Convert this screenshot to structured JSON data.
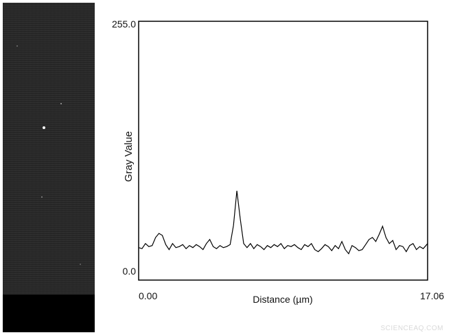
{
  "chart_data": {
    "type": "line",
    "ylabel": "Gray Value",
    "xlabel": "Distance (µm)",
    "x_tick_labels": [
      "0.00",
      "17.06"
    ],
    "y_tick_labels": [
      "0.0",
      "255.0"
    ],
    "xlim": [
      0,
      17.06
    ],
    "ylim": [
      0,
      255
    ],
    "grid": false,
    "series": [
      {
        "x": [
          0,
          0.2,
          0.4,
          0.6,
          0.8,
          1.0,
          1.2,
          1.4,
          1.6,
          1.8,
          2.0,
          2.2,
          2.4,
          2.6,
          2.8,
          3.0,
          3.2,
          3.4,
          3.6,
          3.8,
          4.0,
          4.2,
          4.4,
          4.6,
          4.8,
          5.0,
          5.2,
          5.4,
          5.6,
          5.8,
          6.0,
          6.2,
          6.4,
          6.6,
          6.8,
          7.0,
          7.2,
          7.4,
          7.6,
          7.8,
          8.0,
          8.2,
          8.4,
          8.6,
          8.8,
          9.0,
          9.2,
          9.4,
          9.6,
          9.8,
          10.0,
          10.2,
          10.4,
          10.6,
          10.8,
          11.0,
          11.2,
          11.4,
          11.6,
          11.8,
          12.0,
          12.2,
          12.4,
          12.6,
          12.8,
          13.0,
          13.2,
          13.4,
          13.6,
          13.8,
          14.0,
          14.2,
          14.4,
          14.6,
          14.8,
          15.0,
          15.2,
          15.4,
          15.6,
          15.8,
          16.0,
          16.2,
          16.4,
          16.6,
          16.8,
          17.06
        ],
        "y": [
          32,
          31,
          36,
          33,
          34,
          42,
          46,
          44,
          35,
          30,
          36,
          32,
          33,
          35,
          31,
          34,
          32,
          35,
          33,
          30,
          36,
          40,
          33,
          31,
          34,
          32,
          33,
          35,
          54,
          88,
          60,
          36,
          32,
          36,
          31,
          35,
          33,
          30,
          34,
          32,
          35,
          33,
          36,
          31,
          34,
          33,
          35,
          32,
          30,
          35,
          33,
          36,
          30,
          28,
          31,
          35,
          33,
          29,
          34,
          31,
          38,
          30,
          26,
          34,
          32,
          29,
          30,
          35,
          40,
          42,
          38,
          45,
          53,
          42,
          36,
          39,
          30,
          34,
          33,
          28,
          34,
          36,
          30,
          33,
          31,
          36
        ]
      }
    ]
  },
  "watermark": "SCIENCEAQ.COM"
}
